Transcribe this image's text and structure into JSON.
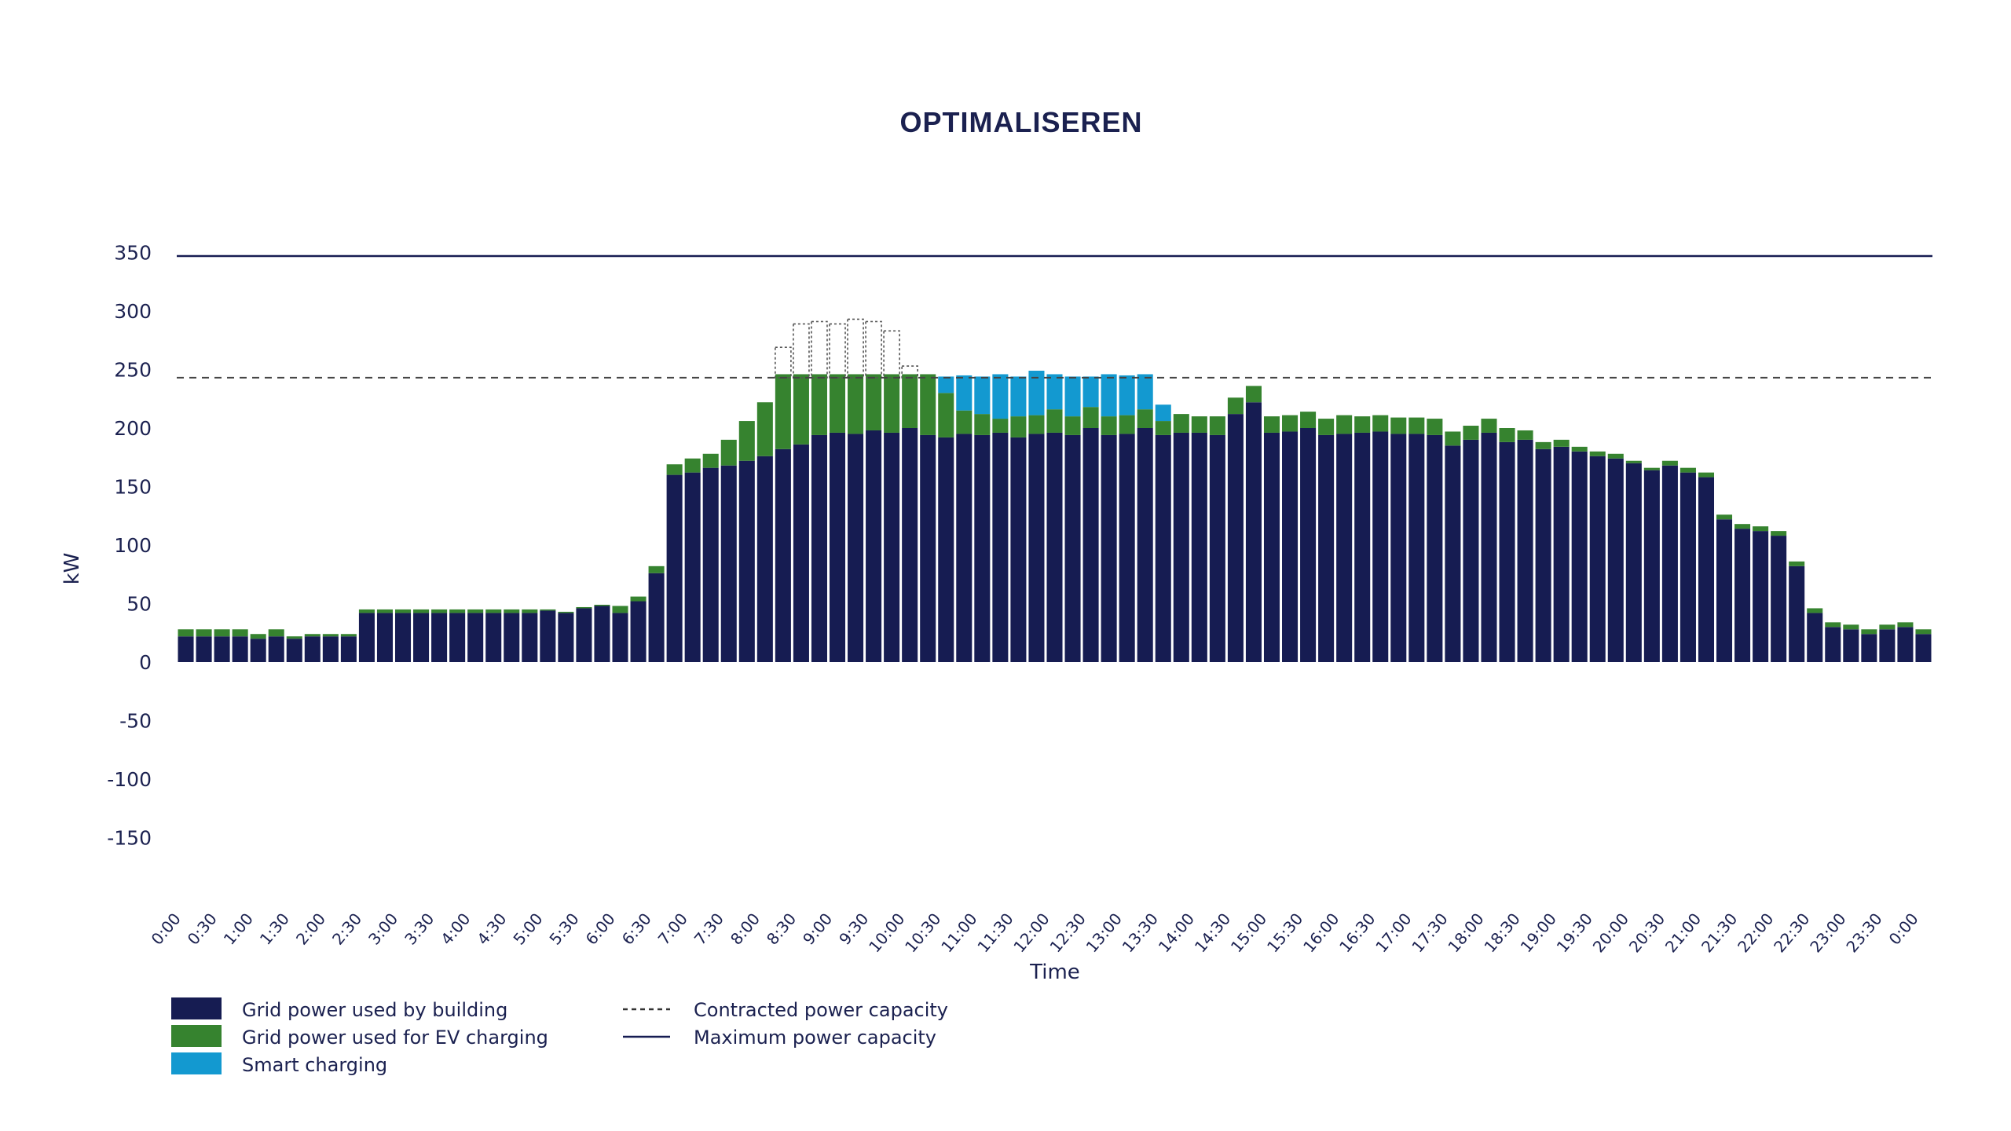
{
  "chart_data": {
    "type": "bar",
    "stacked": true,
    "title": "OPTIMALISEREN",
    "xlabel": "Time",
    "ylabel": "kW",
    "ylim": [
      -190,
      370
    ],
    "yticks": [
      350,
      300,
      250,
      200,
      150,
      100,
      50,
      0,
      -50,
      -100,
      -150
    ],
    "xtick_labels": [
      "0:00",
      "0:30",
      "1:00",
      "1:30",
      "2:00",
      "2:30",
      "3:00",
      "3:30",
      "4:00",
      "4:30",
      "5:00",
      "5:30",
      "6:00",
      "6:30",
      "7:00",
      "7:30",
      "8:00",
      "8:30",
      "9:00",
      "9:30",
      "10:00",
      "10:30",
      "11:00",
      "11:30",
      "12:00",
      "12:30",
      "13:00",
      "13:30",
      "14:00",
      "14:30",
      "15:00",
      "15:30",
      "16:00",
      "16:30",
      "17:00",
      "17:30",
      "18:00",
      "18:30",
      "19:00",
      "19:30",
      "20:00",
      "20:30",
      "21:00",
      "21:30",
      "22:00",
      "22:30",
      "23:00",
      "23:30",
      "0:00"
    ],
    "interval_minutes": 15,
    "series": [
      {
        "name": "Grid power used by building",
        "color": "#161c52",
        "values": [
          22,
          22,
          22,
          22,
          20,
          22,
          20,
          22,
          22,
          22,
          42,
          42,
          42,
          42,
          42,
          42,
          42,
          42,
          42,
          42,
          44,
          42,
          46,
          48,
          42,
          52,
          76,
          160,
          162,
          166,
          168,
          172,
          176,
          182,
          186,
          194,
          196,
          195,
          198,
          196,
          200,
          194,
          192,
          195,
          194,
          196,
          192,
          195,
          196,
          194,
          200,
          194,
          195,
          200,
          194,
          196,
          196,
          194,
          212,
          222,
          196,
          197,
          200,
          194,
          195,
          196,
          197,
          195,
          195,
          194,
          185,
          190,
          196,
          188,
          190,
          182,
          184,
          180,
          176,
          174,
          170,
          164,
          168,
          162,
          158,
          122,
          114,
          112,
          108,
          82,
          42,
          30,
          28,
          24,
          28,
          30,
          24
        ]
      },
      {
        "name": "Grid power used for EV charging",
        "color": "#36832f",
        "values": [
          6,
          6,
          6,
          6,
          4,
          6,
          2,
          2,
          2,
          2,
          3,
          3,
          3,
          3,
          3,
          3,
          3,
          3,
          3,
          3,
          1,
          1,
          1,
          1,
          6,
          4,
          6,
          9,
          12,
          12,
          22,
          34,
          46,
          64,
          60,
          52,
          50,
          51,
          48,
          50,
          46,
          52,
          38,
          20,
          18,
          12,
          18,
          16,
          20,
          16,
          18,
          16,
          16,
          16,
          12,
          16,
          14,
          16,
          14,
          14,
          14,
          14,
          14,
          14,
          16,
          14,
          14,
          14,
          14,
          14,
          12,
          12,
          12,
          12,
          8,
          6,
          6,
          4,
          4,
          4,
          2,
          2,
          4,
          4,
          4,
          4,
          4,
          4,
          4,
          4,
          4,
          4,
          4,
          4,
          4,
          4,
          4
        ]
      },
      {
        "name": "Smart charging",
        "color": "#1399d0",
        "values": [
          0,
          0,
          0,
          0,
          0,
          0,
          0,
          0,
          0,
          0,
          0,
          0,
          0,
          0,
          0,
          0,
          0,
          0,
          0,
          0,
          0,
          0,
          0,
          0,
          0,
          0,
          0,
          0,
          0,
          0,
          0,
          0,
          0,
          0,
          0,
          0,
          0,
          0,
          0,
          0,
          0,
          0,
          14,
          30,
          32,
          38,
          34,
          38,
          30,
          34,
          26,
          36,
          34,
          30,
          14,
          0,
          0,
          0,
          0,
          0,
          0,
          0,
          0,
          0,
          0,
          0,
          0,
          0,
          0,
          0,
          0,
          0,
          0,
          0,
          0,
          0,
          0,
          0,
          0,
          0,
          0,
          0,
          0,
          0,
          0,
          0,
          0,
          0,
          0,
          0,
          0,
          0,
          0,
          0,
          0,
          0,
          0
        ]
      },
      {
        "name": "Contracted power capacity",
        "color": "#333333",
        "values": [
          0,
          0,
          0,
          0,
          0,
          0,
          0,
          0,
          0,
          0,
          0,
          0,
          0,
          0,
          0,
          0,
          0,
          0,
          0,
          0,
          0,
          0,
          0,
          0,
          0,
          0,
          0,
          0,
          0,
          0,
          0,
          0,
          0,
          0,
          0,
          0,
          0,
          0,
          0,
          0,
          0,
          0,
          0,
          0,
          0,
          0,
          0,
          0,
          0,
          0,
          0,
          0,
          0,
          0,
          0,
          0,
          0,
          0,
          0,
          0,
          0,
          0,
          0,
          0,
          0,
          0,
          0,
          0,
          0,
          0,
          0,
          0,
          0,
          0,
          0,
          0,
          0,
          0,
          0,
          0,
          0,
          0,
          0,
          0,
          0,
          0,
          0,
          0,
          0,
          0,
          0,
          0,
          0,
          0,
          0,
          0,
          0
        ],
        "overflow_above_contracted": {
          "start_index": 33,
          "values": [
            26,
            46,
            48,
            46,
            50,
            48,
            40,
            10
          ]
        }
      }
    ],
    "contracted_power_capacity": 243,
    "maximum_power_capacity": 347,
    "legend": {
      "placement": "bottom-left",
      "items": [
        {
          "label": "Grid power used by building",
          "kind": "swatch",
          "color": "#161c52"
        },
        {
          "label": "Grid power used for EV charging",
          "kind": "swatch",
          "color": "#36832f"
        },
        {
          "label": "Smart charging",
          "kind": "swatch",
          "color": "#1399d0"
        },
        {
          "label": "Contracted power capacity",
          "kind": "dashed-line",
          "color": "#333333"
        },
        {
          "label": "Maximum power capacity",
          "kind": "solid-line",
          "color": "#161c52"
        }
      ]
    },
    "grid": false
  }
}
